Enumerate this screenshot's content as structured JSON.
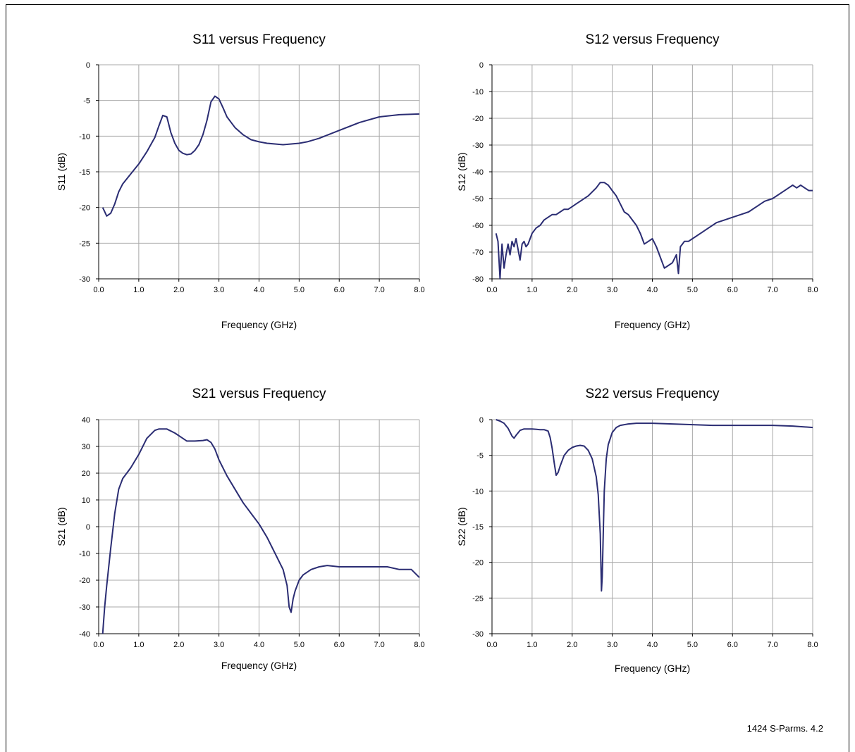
{
  "figure_caption": "1424 S-Parms. 4.2",
  "colors": {
    "series": "#2b2d73",
    "grid": "#a8a8a8",
    "axis": "#000000"
  },
  "chart_data": [
    {
      "type": "line",
      "title": "S11 versus Frequency",
      "xlabel": "Frequency (GHz)",
      "ylabel": "S11 (dB)",
      "xlim": [
        0,
        8
      ],
      "ylim": [
        -30,
        0
      ],
      "xticks": [
        0,
        1,
        2,
        3,
        4,
        5,
        6,
        7,
        8
      ],
      "xtick_labels": [
        "0.0",
        "1.0",
        "2.0",
        "3.0",
        "4.0",
        "5.0",
        "6.0",
        "7.0",
        "8.0"
      ],
      "yticks": [
        -30,
        -25,
        -20,
        -15,
        -10,
        -5,
        0
      ],
      "ytick_labels": [
        "-30",
        "-25",
        "-20",
        "-15",
        "-10",
        "-5",
        "0"
      ],
      "grid": true,
      "legend": "none",
      "series": [
        {
          "x": [
            0.1,
            0.2,
            0.3,
            0.4,
            0.5,
            0.6,
            0.7,
            0.8,
            1.0,
            1.2,
            1.3,
            1.4,
            1.5,
            1.6,
            1.7,
            1.8,
            1.9,
            2.0,
            2.1,
            2.2,
            2.3,
            2.4,
            2.5,
            2.6,
            2.7,
            2.8,
            2.9,
            3.0,
            3.1,
            3.2,
            3.4,
            3.6,
            3.8,
            4.0,
            4.2,
            4.4,
            4.6,
            4.8,
            5.0,
            5.2,
            5.5,
            6.0,
            6.5,
            7.0,
            7.5,
            8.0
          ],
          "y": [
            -20,
            -21.2,
            -20.8,
            -19.5,
            -17.8,
            -16.7,
            -16,
            -15.3,
            -13.9,
            -12.2,
            -11.2,
            -10.2,
            -8.6,
            -7.1,
            -7.3,
            -9.5,
            -11,
            -12,
            -12.4,
            -12.6,
            -12.5,
            -12,
            -11.2,
            -9.8,
            -7.8,
            -5.2,
            -4.4,
            -4.8,
            -6,
            -7.3,
            -8.8,
            -9.8,
            -10.5,
            -10.8,
            -11,
            -11.1,
            -11.2,
            -11.1,
            -11,
            -10.8,
            -10.3,
            -9.2,
            -8.1,
            -7.3,
            -7,
            -6.9
          ]
        }
      ]
    },
    {
      "type": "line",
      "title": "S12 versus Frequency",
      "xlabel": "Frequency (GHz)",
      "ylabel": "S12 (dB)",
      "xlim": [
        0,
        8
      ],
      "ylim": [
        -80,
        0
      ],
      "xticks": [
        0,
        1,
        2,
        3,
        4,
        5,
        6,
        7,
        8
      ],
      "xtick_labels": [
        "0.0",
        "1.0",
        "2.0",
        "3.0",
        "4.0",
        "5.0",
        "6.0",
        "7.0",
        "8.0"
      ],
      "yticks": [
        -80,
        -70,
        -60,
        -50,
        -40,
        -30,
        -20,
        -10,
        0
      ],
      "ytick_labels": [
        "-80",
        "-70",
        "-60",
        "-50",
        "-40",
        "-30",
        "-20",
        "-10",
        "0"
      ],
      "grid": true,
      "legend": "none",
      "series": [
        {
          "x": [
            0.1,
            0.15,
            0.2,
            0.25,
            0.3,
            0.35,
            0.4,
            0.45,
            0.5,
            0.55,
            0.6,
            0.65,
            0.7,
            0.75,
            0.8,
            0.85,
            0.9,
            1.0,
            1.1,
            1.2,
            1.3,
            1.4,
            1.5,
            1.6,
            1.7,
            1.8,
            1.9,
            2.0,
            2.1,
            2.2,
            2.4,
            2.6,
            2.7,
            2.8,
            2.9,
            3.0,
            3.1,
            3.2,
            3.3,
            3.4,
            3.5,
            3.6,
            3.7,
            3.8,
            3.9,
            4.0,
            4.1,
            4.2,
            4.3,
            4.4,
            4.5,
            4.6,
            4.65,
            4.7,
            4.75,
            4.8,
            4.9,
            5.0,
            5.2,
            5.4,
            5.6,
            5.8,
            6.0,
            6.2,
            6.4,
            6.6,
            6.8,
            7.0,
            7.2,
            7.4,
            7.5,
            7.6,
            7.7,
            7.8,
            7.9,
            8.0
          ],
          "y": [
            -63,
            -66,
            -80,
            -67,
            -76,
            -71,
            -67,
            -71,
            -66,
            -68,
            -65,
            -69,
            -73,
            -67,
            -66,
            -68,
            -67,
            -63,
            -61,
            -60,
            -58,
            -57,
            -56,
            -56,
            -55,
            -54,
            -54,
            -53,
            -52,
            -51,
            -49,
            -46,
            -44,
            -44,
            -45,
            -47,
            -49,
            -52,
            -55,
            -56,
            -58,
            -60,
            -63,
            -67,
            -66,
            -65,
            -68,
            -72,
            -76,
            -75,
            -74,
            -71,
            -78,
            -68,
            -67,
            -66,
            -66,
            -65,
            -63,
            -61,
            -59,
            -58,
            -57,
            -56,
            -55,
            -53,
            -51,
            -50,
            -48,
            -46,
            -45,
            -46,
            -45,
            -46,
            -47,
            -47
          ]
        }
      ]
    },
    {
      "type": "line",
      "title": "S21 versus Frequency",
      "xlabel": "Frequency (GHz)",
      "ylabel": "S21 (dB)",
      "xlim": [
        0,
        8
      ],
      "ylim": [
        -40,
        40
      ],
      "xticks": [
        0,
        1,
        2,
        3,
        4,
        5,
        6,
        7,
        8
      ],
      "xtick_labels": [
        "0.0",
        "1.0",
        "2.0",
        "3.0",
        "4.0",
        "5.0",
        "6.0",
        "7.0",
        "8.0"
      ],
      "yticks": [
        -40,
        -30,
        -20,
        -10,
        0,
        10,
        20,
        30,
        40
      ],
      "ytick_labels": [
        "-40",
        "-30",
        "-20",
        "-10",
        "0",
        "10",
        "20",
        "30",
        "40"
      ],
      "grid": true,
      "legend": "none",
      "series": [
        {
          "x": [
            0.1,
            0.15,
            0.2,
            0.3,
            0.4,
            0.5,
            0.6,
            0.7,
            0.8,
            1.0,
            1.2,
            1.4,
            1.5,
            1.7,
            1.9,
            2.1,
            2.2,
            2.4,
            2.6,
            2.7,
            2.8,
            2.9,
            3.0,
            3.2,
            3.4,
            3.6,
            3.8,
            4.0,
            4.2,
            4.4,
            4.6,
            4.7,
            4.75,
            4.8,
            4.85,
            4.9,
            5.0,
            5.1,
            5.3,
            5.5,
            5.7,
            6.0,
            6.3,
            6.6,
            6.9,
            7.2,
            7.5,
            7.8,
            8.0
          ],
          "y": [
            -40,
            -30,
            -22,
            -8,
            5,
            14,
            18,
            20,
            22,
            27,
            33,
            36,
            36.5,
            36.5,
            35,
            33,
            32,
            32,
            32.2,
            32.5,
            31.5,
            29,
            25,
            19,
            14,
            9,
            5,
            1,
            -4,
            -10,
            -16,
            -22,
            -30,
            -32,
            -27,
            -24,
            -20,
            -18,
            -16,
            -15,
            -14.5,
            -15,
            -15,
            -15,
            -15,
            -15,
            -16,
            -16,
            -19
          ]
        }
      ]
    },
    {
      "type": "line",
      "title": "S22 versus Frequency",
      "xlabel": "Frequency (GHz)",
      "ylabel": "S22 (dB)",
      "xlim": [
        0,
        8
      ],
      "ylim": [
        -30,
        0
      ],
      "xticks": [
        0,
        1,
        2,
        3,
        4,
        5,
        6,
        7,
        8
      ],
      "xtick_labels": [
        "0.0",
        "1.0",
        "2.0",
        "3.0",
        "4.0",
        "5.0",
        "6.0",
        "7.0",
        "8.0"
      ],
      "yticks": [
        -30,
        -25,
        -20,
        -15,
        -10,
        -5,
        0
      ],
      "ytick_labels": [
        "-30",
        "-25",
        "-20",
        "-15",
        "-10",
        "-5",
        "0"
      ],
      "grid": true,
      "legend": "none",
      "series": [
        {
          "x": [
            0.1,
            0.2,
            0.3,
            0.4,
            0.5,
            0.55,
            0.6,
            0.7,
            0.8,
            1.0,
            1.2,
            1.3,
            1.4,
            1.45,
            1.5,
            1.55,
            1.6,
            1.65,
            1.7,
            1.8,
            1.9,
            2.0,
            2.1,
            2.2,
            2.3,
            2.4,
            2.5,
            2.6,
            2.65,
            2.7,
            2.73,
            2.75,
            2.8,
            2.85,
            2.9,
            3.0,
            3.1,
            3.2,
            3.4,
            3.6,
            4.0,
            4.5,
            5.0,
            5.5,
            6.0,
            6.5,
            7.0,
            7.5,
            8.0
          ],
          "y": [
            0,
            -0.2,
            -0.5,
            -1.2,
            -2.3,
            -2.6,
            -2.2,
            -1.5,
            -1.3,
            -1.3,
            -1.4,
            -1.4,
            -1.6,
            -2.5,
            -4,
            -6,
            -7.8,
            -7.4,
            -6.5,
            -5,
            -4.3,
            -3.9,
            -3.7,
            -3.6,
            -3.7,
            -4.3,
            -5.5,
            -8,
            -10.5,
            -16,
            -24,
            -22,
            -10,
            -5.5,
            -3.5,
            -1.8,
            -1.1,
            -0.8,
            -0.6,
            -0.5,
            -0.5,
            -0.6,
            -0.7,
            -0.8,
            -0.8,
            -0.8,
            -0.8,
            -0.9,
            -1.1
          ]
        }
      ]
    }
  ]
}
